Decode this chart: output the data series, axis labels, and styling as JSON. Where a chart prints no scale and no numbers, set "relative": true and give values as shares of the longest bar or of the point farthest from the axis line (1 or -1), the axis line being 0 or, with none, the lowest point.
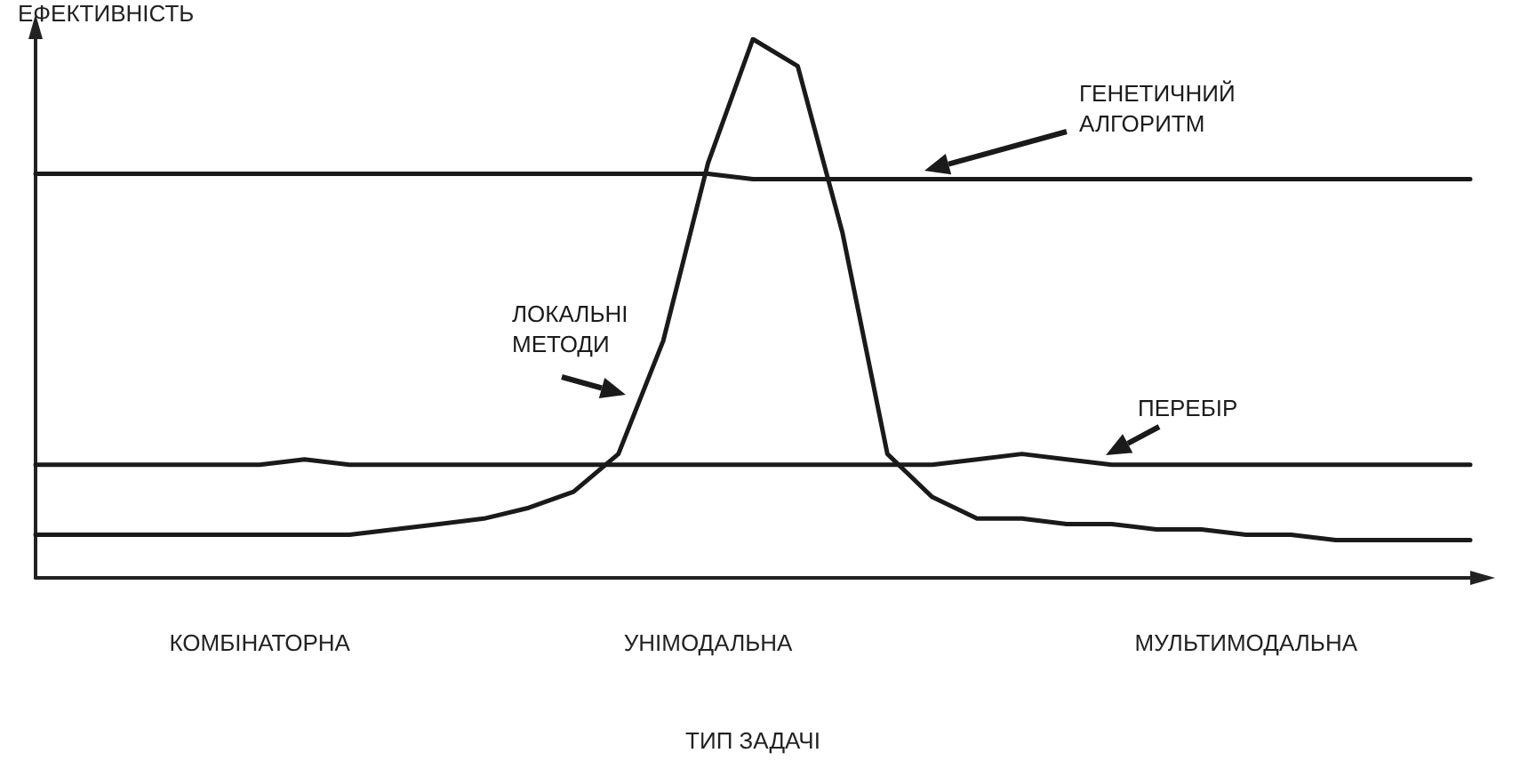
{
  "chart_data": {
    "type": "line",
    "relative": true,
    "xlabel": "ТИП ЗАДАЧІ",
    "ylabel": "ЕФЕКТИВНІСТЬ",
    "grid": false,
    "legend": false,
    "marker": "none",
    "line_style": "solid",
    "categories": [
      null,
      null,
      null,
      null,
      null,
      "КОМБІНАТОРНА",
      null,
      null,
      null,
      null,
      null,
      null,
      null,
      null,
      null,
      "УНІМОДАЛЬНА",
      null,
      null,
      null,
      null,
      null,
      null,
      null,
      null,
      null,
      null,
      null,
      "МУЛЬТИМОДАЛЬНА",
      null,
      null,
      null,
      null,
      null
    ],
    "series": [
      {
        "name": "ГЕНЕТИЧНИЙ АЛГОРИТМ",
        "color": "#1a1a1a",
        "values": [
          0.75,
          0.75,
          0.75,
          0.75,
          0.75,
          0.75,
          0.75,
          0.75,
          0.75,
          0.75,
          0.75,
          0.75,
          0.75,
          0.75,
          0.75,
          0.75,
          0.74,
          0.74,
          0.74,
          0.74,
          0.74,
          0.74,
          0.74,
          0.74,
          0.74,
          0.74,
          0.74,
          0.74,
          0.74,
          0.74,
          0.74,
          0.74,
          0.74
        ]
      },
      {
        "name": "ЛОКАЛЬНІ МЕТОДИ",
        "color": "#1a1a1a",
        "values": [
          0.08,
          0.08,
          0.08,
          0.08,
          0.08,
          0.08,
          0.08,
          0.08,
          0.09,
          0.1,
          0.11,
          0.13,
          0.16,
          0.23,
          0.44,
          0.77,
          1,
          0.95,
          0.64,
          0.23,
          0.15,
          0.11,
          0.11,
          0.1,
          0.1,
          0.09,
          0.09,
          0.08,
          0.08,
          0.07,
          0.07,
          0.07,
          0.07
        ]
      },
      {
        "name": "ПЕРЕБІР",
        "color": "#1a1a1a",
        "values": [
          0.21,
          0.21,
          0.21,
          0.21,
          0.21,
          0.21,
          0.22,
          0.21,
          0.21,
          0.21,
          0.21,
          0.21,
          0.21,
          0.21,
          0.21,
          0.21,
          0.21,
          0.21,
          0.21,
          0.21,
          0.21,
          0.22,
          0.23,
          0.22,
          0.21,
          0.21,
          0.21,
          0.21,
          0.21,
          0.21,
          0.21,
          0.21,
          0.21
        ]
      }
    ]
  }
}
